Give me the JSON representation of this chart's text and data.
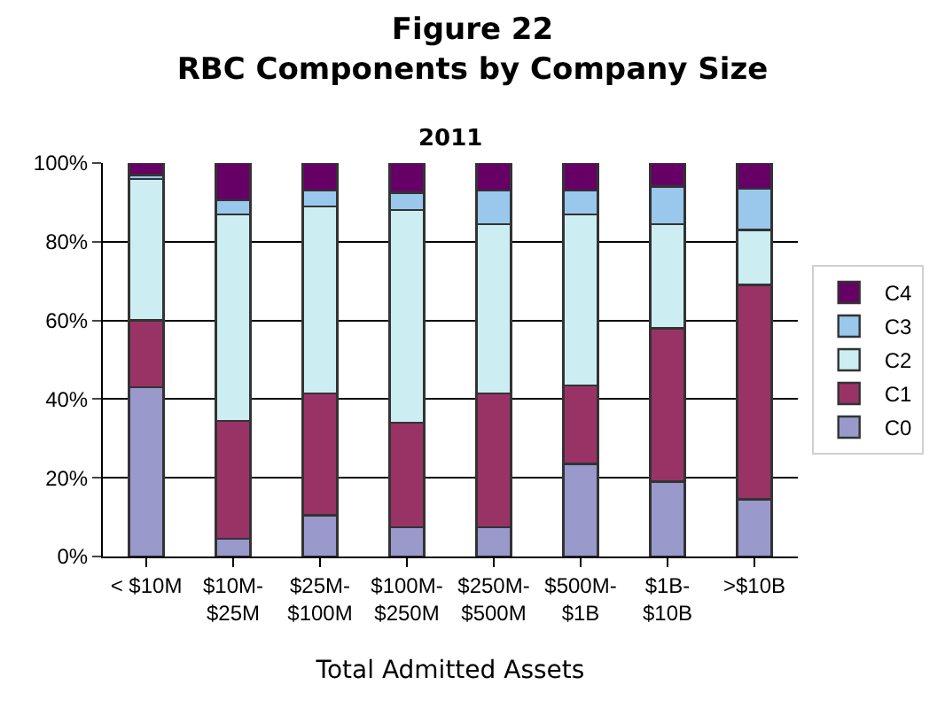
{
  "chart_data": {
    "type": "bar",
    "stacked": true,
    "title": "Figure 22\nRBC Components by Company Size",
    "subtitle": "2011",
    "xlabel": "Total Admitted Assets",
    "categories": [
      "< $10M",
      "$10M-\n$25M",
      "$25M-\n$100M",
      "$100M-\n$250M",
      "$250M-\n$500M",
      "$500M-\n$1B",
      "$1B-\n$10B",
      ">$10B"
    ],
    "series": [
      {
        "name": "C0",
        "color": "#9999cc",
        "values": [
          43,
          4.5,
          10.5,
          7.5,
          7.5,
          23.5,
          19,
          14.5
        ]
      },
      {
        "name": "C1",
        "color": "#993366",
        "values": [
          17,
          30,
          31,
          26.5,
          34,
          20,
          39,
          54.5
        ]
      },
      {
        "name": "C2",
        "color": "#cceef2",
        "values": [
          36,
          52.5,
          47.5,
          54,
          43,
          43.5,
          26.5,
          14
        ]
      },
      {
        "name": "C3",
        "color": "#99c8ec",
        "values": [
          1,
          3.5,
          4,
          4.5,
          8.5,
          6,
          9.5,
          10.5
        ]
      },
      {
        "name": "C4",
        "color": "#660066",
        "values": [
          3,
          9.5,
          7,
          7.5,
          7,
          7,
          6,
          6.5
        ]
      }
    ],
    "ylim": [
      0,
      100
    ],
    "yticks": [
      {
        "value": 0,
        "label": "0%"
      },
      {
        "value": 20,
        "label": "20%"
      },
      {
        "value": 40,
        "label": "40%"
      },
      {
        "value": 60,
        "label": "60%"
      },
      {
        "value": 80,
        "label": "80%"
      },
      {
        "value": 100,
        "label": "100%"
      }
    ],
    "grid": "y",
    "legend": "right"
  }
}
